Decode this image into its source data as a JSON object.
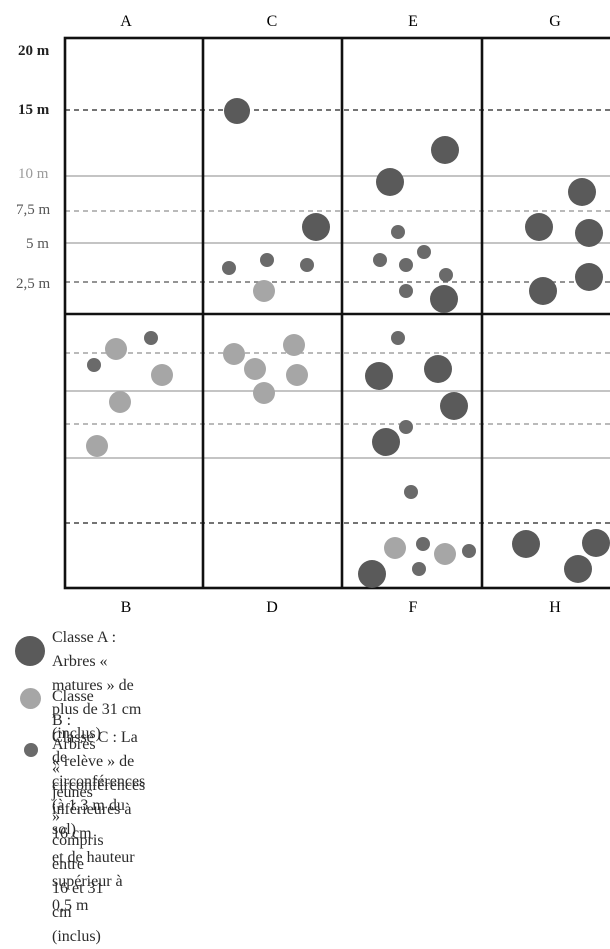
{
  "top_columns": [
    "A",
    "C",
    "E",
    "G"
  ],
  "bottom_columns": [
    "B",
    "D",
    "F",
    "H"
  ],
  "y_labels": [
    "20 m",
    "15 m",
    "10 m",
    "7,5 m",
    "5 m",
    "2,5 m"
  ],
  "colors": {
    "classA": "#5a5a5a",
    "classB": "#a6a6a6",
    "classC": "#6a6a6a",
    "grid_solid": "#b0b0b0",
    "grid_dashed": "#909090",
    "frame": "#111111",
    "muted_label": "#9a9a9a"
  },
  "legend": [
    {
      "class": "A",
      "lines": [
        "Classe A : Arbres « matures » de plus de 31 cm (inclus)",
        "de circonférences (à 1,3 m du sol)"
      ]
    },
    {
      "class": "B",
      "lines": [
        "Classe B : Arbres « jeunes » compris entre 16 et 31 cm (inclus)"
      ]
    },
    {
      "class": "C",
      "lines": [
        "Classe C : La  « relève » de circonférences inférieures à 16 cm",
        "et de hauteur supérieur à 0,5 m"
      ]
    }
  ]
}
